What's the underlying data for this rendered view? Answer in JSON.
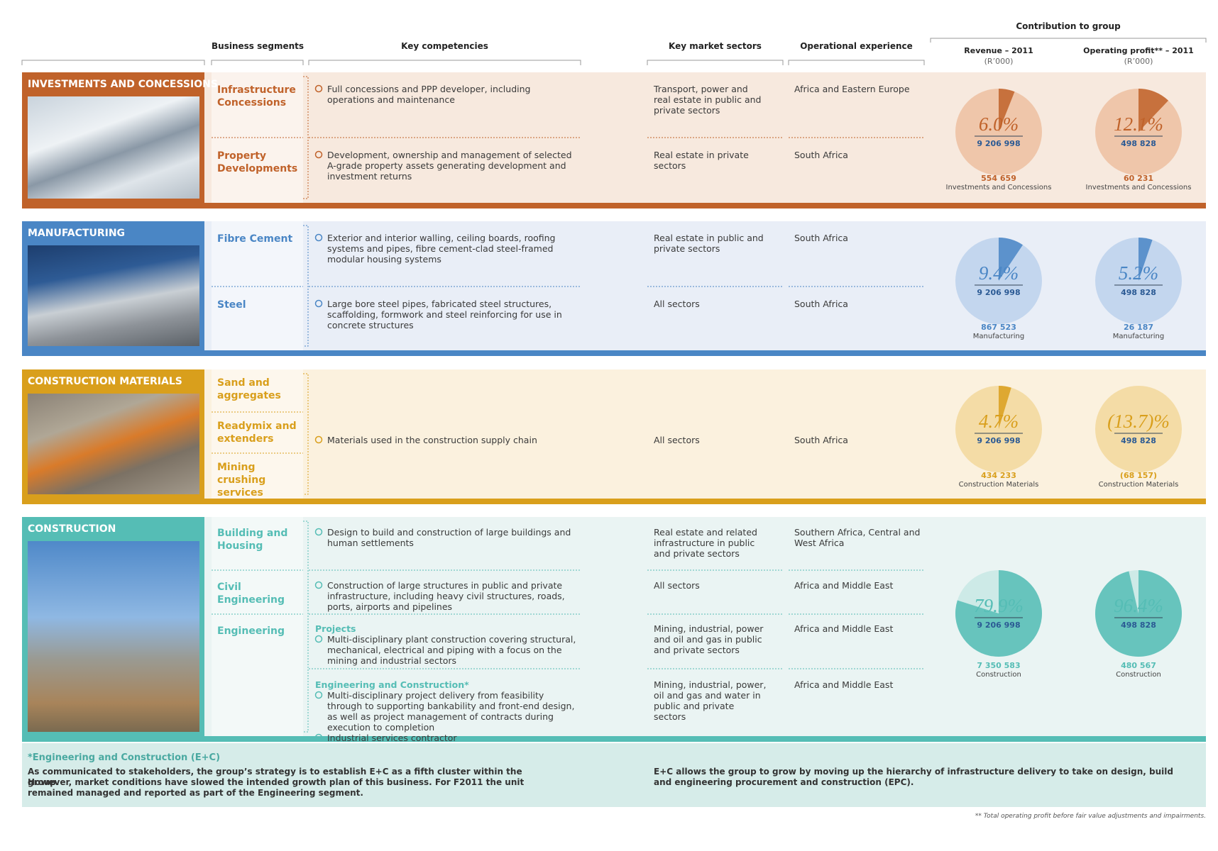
{
  "header": {
    "contribution": "Contribution to group",
    "segments": "Business segments",
    "competencies": "Key competencies",
    "sectors": "Key market sectors",
    "experience": "Operational experience",
    "revenue": "Revenue – 2011",
    "revenue_unit": "(R’000)",
    "profit": "Operating profit** – 2011",
    "profit_unit": "(R’000)"
  },
  "clusters": [
    {
      "name": "INVESTMENTS AND CONCESSIONS",
      "color": "#c0622a",
      "light": "#f7e9de",
      "pie_light": "#efc6aa",
      "segments": [
        "Infrastructure Concessions",
        "Property Developments"
      ],
      "details": [
        {
          "items": [
            "Full concessions and PPP developer, including operations and maintenance"
          ],
          "sectors": "Transport, power and real estate in public and private sectors",
          "experience": "Africa and Eastern Europe"
        },
        {
          "items": [
            "Development, ownership and management of selected A-grade property assets generating development and investment returns"
          ],
          "sectors": "Real estate in private sectors",
          "experience": "South Africa"
        }
      ],
      "pies": [
        {
          "percent": {
            "value": 6.0,
            "label": "6.0%"
          },
          "total": "9 206 998",
          "amount": "554 659",
          "caption": "Investments and Concessions"
        },
        {
          "percent": {
            "value": 12.1,
            "label": "12.1%"
          },
          "total": "498 828",
          "amount": "60 231",
          "caption": "Investments and Concessions"
        }
      ]
    },
    {
      "name": "MANUFACTURING",
      "color": "#4a86c5",
      "light": "#e9eef7",
      "pie_light": "#c3d6ee",
      "segments": [
        "Fibre Cement",
        "Steel"
      ],
      "details": [
        {
          "items": [
            "Exterior and interior walling, ceiling boards, roofing systems and pipes, fibre cement-clad steel-framed modular housing systems"
          ],
          "sectors": "Real estate in public and private sectors",
          "experience": "South Africa"
        },
        {
          "items": [
            "Large bore steel pipes, fabricated steel structures, scaffolding, formwork and steel reinforcing for use in concrete structures"
          ],
          "sectors": "All sectors",
          "experience": "South Africa"
        }
      ],
      "pies": [
        {
          "percent": {
            "value": 9.4,
            "label": "9.4%"
          },
          "total": "9 206 998",
          "amount": "867 523",
          "caption": "Manufacturing"
        },
        {
          "percent": {
            "value": 5.2,
            "label": "5.2%"
          },
          "total": "498 828",
          "amount": "26 187",
          "caption": "Manufacturing"
        }
      ]
    },
    {
      "name": "CONSTRUCTION MATERIALS",
      "color": "#d99f1c",
      "light": "#fbf1de",
      "pie_light": "#f4dca6",
      "segments": [
        "Sand and aggregates",
        "Readymix and extenders",
        "Mining crushing services"
      ],
      "details": [
        {
          "items": [
            "Materials used in the construction supply chain"
          ],
          "sectors": "All sectors",
          "experience": "South Africa"
        }
      ],
      "pies": [
        {
          "percent": {
            "value": 4.7,
            "label": "4.7%"
          },
          "total": "9 206 998",
          "amount": "434 233",
          "caption": "Construction Materials"
        },
        {
          "percent": {
            "value": -13.7,
            "label": "(13.7)%"
          },
          "total": "498 828",
          "amount": "(68 157)",
          "caption": "Construction Materials"
        }
      ]
    },
    {
      "name": "CONSTRUCTION",
      "color": "#55bdb5",
      "light": "#eaf4f3",
      "pie_light": "#cdeae7",
      "segments": [
        "Building and Housing",
        "Civil Engineering",
        "Engineering"
      ],
      "details": [
        {
          "items": [
            "Design to build and construction of large buildings and human settlements"
          ],
          "sectors": "Real estate and related infrastructure in public and private sectors",
          "experience": "Southern Africa, Central and West Africa"
        },
        {
          "items": [
            "Construction of large structures in public and private infrastructure, including heavy civil structures, roads, ports, airports and pipelines"
          ],
          "sectors": "All sectors",
          "experience": "Africa and Middle East"
        },
        {
          "heading": "Projects",
          "items": [
            "Multi-disciplinary plant construction covering structural, mechanical, electrical and piping with a focus on the mining and industrial sectors"
          ],
          "sectors": "Mining, industrial, power and oil and gas in public and private sectors",
          "experience": "Africa and Middle East"
        },
        {
          "heading": "Engineering and Construction*",
          "items": [
            "Multi-disciplinary project delivery from feasibility through to supporting bankability and front-end design, as well as project management of contracts during execution to completion",
            "Industrial services contractor"
          ],
          "sectors": "Mining, industrial, power, oil and gas and water in public and private sectors",
          "experience": "Africa and Middle East"
        }
      ],
      "pies": [
        {
          "percent": {
            "value": 79.9,
            "label": "79.9%"
          },
          "total": "9 206 998",
          "amount": "7 350 583",
          "caption": "Construction"
        },
        {
          "percent": {
            "value": 96.4,
            "label": "96.4%"
          },
          "total": "498 828",
          "amount": "480 567",
          "caption": "Construction"
        }
      ]
    }
  ],
  "footnote": {
    "title": "*Engineering and Construction (E+C)",
    "left": [
      "As communicated to stakeholders, the group’s strategy is to establish E+C as a fifth cluster within the group.",
      "However, market conditions have slowed the intended growth plan of this business. For F2011 the unit remained managed and reported as part of the Engineering segment."
    ],
    "right": "E+C allows the group to grow by moving up the hierarchy of infrastructure delivery to take on design, build and engineering procurement and construction (EPC).",
    "note": "** Total operating profit before fair value adjustments and impairments."
  }
}
